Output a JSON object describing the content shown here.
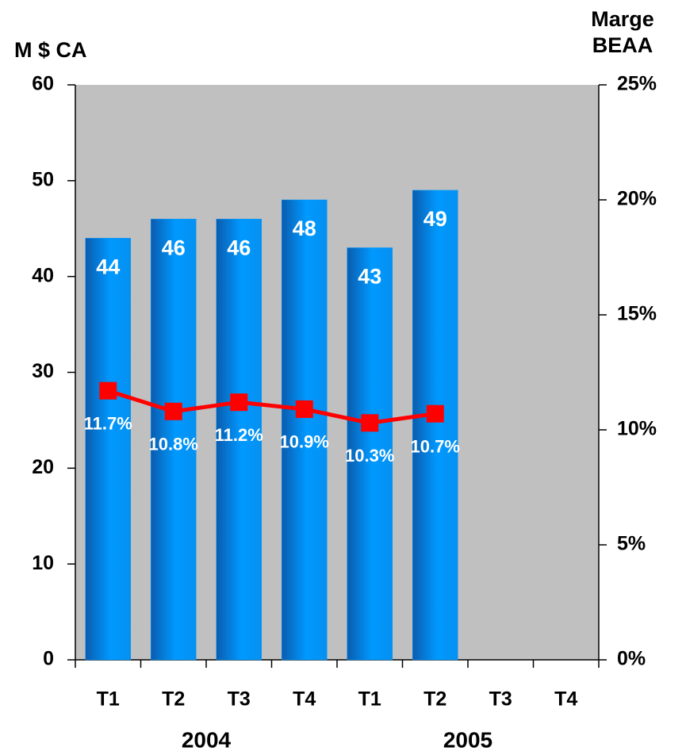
{
  "chart_data": {
    "type": "bar",
    "y_label": "M $ CA",
    "y2_label": "Marge BEAA",
    "categories": [
      "T1",
      "T2",
      "T3",
      "T4",
      "T1",
      "T2",
      "T3",
      "T4"
    ],
    "groups": [
      "2004",
      "2005"
    ],
    "series": [
      {
        "type": "bar",
        "color": "#0099ff",
        "values": [
          44,
          46,
          46,
          48,
          43,
          49,
          null,
          null
        ]
      },
      {
        "type": "line",
        "axis": "y2",
        "color": "#ff0000",
        "values": [
          11.7,
          10.8,
          11.2,
          10.9,
          10.3,
          10.7,
          null,
          null
        ],
        "value_labels": [
          "11.7%",
          "10.8%",
          "11.2%",
          "10.9%",
          "10.3%",
          "10.7%",
          null,
          null
        ]
      }
    ],
    "ylim": [
      0,
      60
    ],
    "yticks": [
      0,
      10,
      20,
      30,
      40,
      50,
      60
    ],
    "y2lim": [
      0,
      25
    ],
    "y2ticks": [
      {
        "value": 0,
        "label": "0%"
      },
      {
        "value": 5,
        "label": "5%"
      },
      {
        "value": 10,
        "label": "10%"
      },
      {
        "value": 15,
        "label": "15%"
      },
      {
        "value": 20,
        "label": "20%"
      },
      {
        "value": 25,
        "label": "25%"
      }
    ],
    "plot_background": "#c0c0c0"
  }
}
